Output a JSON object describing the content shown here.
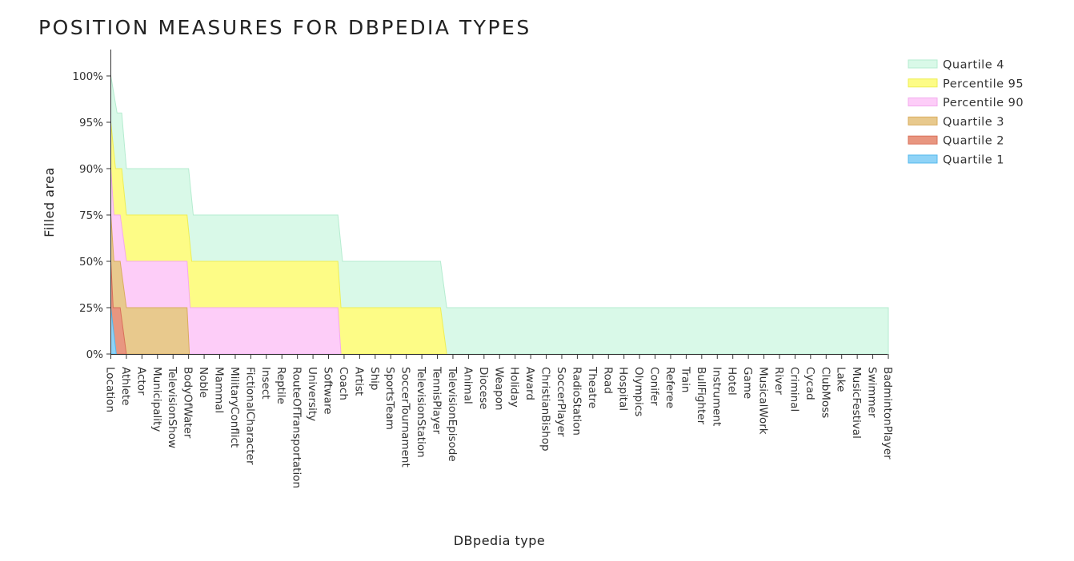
{
  "chart_data": {
    "type": "area",
    "title": "POSITION MEASURES FOR DBPEDIA TYPES",
    "xlabel": "DBpedia type",
    "ylabel": "Filled area",
    "y_ticks": [
      "0%",
      "25%",
      "50%",
      "75%",
      "90%",
      "95%",
      "100%"
    ],
    "categories": [
      "Location",
      "Athlete",
      "Actor",
      "Municipality",
      "TelevisionShow",
      "BodyOfWater",
      "Noble",
      "Mammal",
      "MilitaryConflict",
      "FictionalCharacter",
      "Insect",
      "Reptile",
      "RouteOfTransportation",
      "University",
      "Software",
      "Coach",
      "Artist",
      "Ship",
      "SportsTeam",
      "SoccerTournament",
      "TelevisionStation",
      "TennisPlayer",
      "TelevisionEpisode",
      "Animal",
      "Diocese",
      "Weapon",
      "Holiday",
      "Award",
      "ChristianBishop",
      "SoccerPlayer",
      "RadioStation",
      "Theatre",
      "Road",
      "Hospital",
      "Olympics",
      "Conifer",
      "Referee",
      "Train",
      "BullFighter",
      "Instrument",
      "Hotel",
      "Game",
      "MusicalWork",
      "River",
      "Criminal",
      "Cycad",
      "ClubMoss",
      "Lake",
      "MusicFestival",
      "Swimmer",
      "BadmintonPlayer"
    ],
    "legend_position": "top-right",
    "grid": false,
    "series": [
      {
        "name": "Quartile 4",
        "color": "#d9f9e8",
        "line": "#b5ecd0",
        "points": [
          [
            0,
            100
          ],
          [
            0.4,
            96
          ],
          [
            0.7,
            96
          ],
          [
            1,
            90
          ],
          [
            5,
            90
          ],
          [
            5.3,
            75
          ],
          [
            14.6,
            75
          ],
          [
            14.9,
            50
          ],
          [
            21.2,
            50
          ],
          [
            21.6,
            25
          ],
          [
            50,
            25
          ]
        ]
      },
      {
        "name": "Percentile 95",
        "color": "#fdfc86",
        "line": "#eeee55",
        "points": [
          [
            0,
            95
          ],
          [
            0.3,
            90
          ],
          [
            0.7,
            90
          ],
          [
            1,
            75
          ],
          [
            4.9,
            75
          ],
          [
            5.2,
            50
          ],
          [
            14.6,
            50
          ],
          [
            14.8,
            25
          ],
          [
            21.2,
            25
          ],
          [
            21.6,
            0
          ]
        ]
      },
      {
        "name": "Percentile 90",
        "color": "#fdcdf8",
        "line": "#f4aaee",
        "points": [
          [
            0,
            90
          ],
          [
            0.2,
            75
          ],
          [
            0.6,
            75
          ],
          [
            1,
            50
          ],
          [
            4.9,
            50
          ],
          [
            5.1,
            25
          ],
          [
            14.6,
            25
          ],
          [
            14.8,
            0
          ]
        ]
      },
      {
        "name": "Quartile 3",
        "color": "#e8c98d",
        "line": "#d9ad5e",
        "points": [
          [
            0,
            75
          ],
          [
            0.2,
            50
          ],
          [
            0.6,
            50
          ],
          [
            1,
            25
          ],
          [
            4.9,
            25
          ],
          [
            5.05,
            0
          ]
        ]
      },
      {
        "name": "Quartile 2",
        "color": "#e89680",
        "line": "#d9705a",
        "points": [
          [
            0,
            50
          ],
          [
            0.15,
            25
          ],
          [
            0.6,
            25
          ],
          [
            1,
            0
          ]
        ]
      },
      {
        "name": "Quartile 1",
        "color": "#8fd3f7",
        "line": "#55b8ec",
        "points": [
          [
            0,
            25
          ],
          [
            0.35,
            0
          ]
        ]
      }
    ]
  }
}
